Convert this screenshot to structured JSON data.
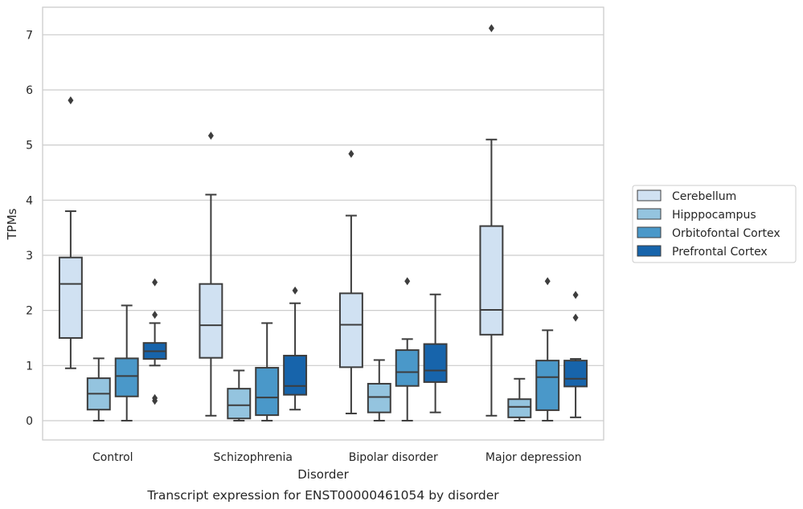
{
  "chart_data": {
    "type": "boxplot",
    "title": "",
    "caption": "Transcript expression for ENST00000461054 by disorder",
    "xlabel": "Disorder",
    "ylabel": "TPMs",
    "ylim": [
      -0.35,
      7.5
    ],
    "yticks": [
      0,
      1,
      2,
      3,
      4,
      5,
      6,
      7
    ],
    "grid": "horizontal",
    "legend_position": "right",
    "categories": [
      "Control",
      "Schizophrenia",
      "Bipolar disorder",
      "Major depression"
    ],
    "series": [
      {
        "name": "Cerebellum",
        "color": "#d0e1f2",
        "boxes": [
          {
            "q1": 1.5,
            "median": 2.48,
            "q3": 2.96,
            "whislo": 0.95,
            "whishi": 3.8,
            "fliers": [
              5.81
            ]
          },
          {
            "q1": 1.14,
            "median": 1.73,
            "q3": 2.48,
            "whislo": 0.09,
            "whishi": 4.1,
            "fliers": [
              5.17
            ]
          },
          {
            "q1": 0.97,
            "median": 1.74,
            "q3": 2.31,
            "whislo": 0.13,
            "whishi": 3.72,
            "fliers": [
              4.84
            ]
          },
          {
            "q1": 1.56,
            "median": 2.01,
            "q3": 3.53,
            "whislo": 0.09,
            "whishi": 5.1,
            "fliers": [
              7.12
            ]
          }
        ]
      },
      {
        "name": "Hipppocampus",
        "color": "#94c4df",
        "boxes": [
          {
            "q1": 0.2,
            "median": 0.49,
            "q3": 0.77,
            "whislo": 0.0,
            "whishi": 1.13,
            "fliers": []
          },
          {
            "q1": 0.04,
            "median": 0.28,
            "q3": 0.58,
            "whislo": 0.0,
            "whishi": 0.91,
            "fliers": []
          },
          {
            "q1": 0.15,
            "median": 0.43,
            "q3": 0.67,
            "whislo": 0.0,
            "whishi": 1.1,
            "fliers": []
          },
          {
            "q1": 0.06,
            "median": 0.25,
            "q3": 0.39,
            "whislo": 0.0,
            "whishi": 0.76,
            "fliers": []
          }
        ]
      },
      {
        "name": "Orbitofontal Cortex",
        "color": "#4a98c9",
        "boxes": [
          {
            "q1": 0.44,
            "median": 0.81,
            "q3": 1.13,
            "whislo": 0.0,
            "whishi": 2.09,
            "fliers": []
          },
          {
            "q1": 0.1,
            "median": 0.42,
            "q3": 0.96,
            "whislo": 0.0,
            "whishi": 1.77,
            "fliers": []
          },
          {
            "q1": 0.63,
            "median": 0.88,
            "q3": 1.28,
            "whislo": 0.0,
            "whishi": 1.48,
            "fliers": [
              2.53
            ]
          },
          {
            "q1": 0.19,
            "median": 0.79,
            "q3": 1.09,
            "whislo": 0.0,
            "whishi": 1.64,
            "fliers": [
              2.53
            ]
          }
        ]
      },
      {
        "name": "Prefrontal Cortex",
        "color": "#1764ab",
        "boxes": [
          {
            "q1": 1.12,
            "median": 1.26,
            "q3": 1.41,
            "whislo": 1.0,
            "whishi": 1.77,
            "fliers": [
              2.51,
              1.92,
              0.41,
              0.36
            ]
          },
          {
            "q1": 0.47,
            "median": 0.63,
            "q3": 1.18,
            "whislo": 0.2,
            "whishi": 2.13,
            "fliers": [
              2.36
            ]
          },
          {
            "q1": 0.7,
            "median": 0.91,
            "q3": 1.39,
            "whislo": 0.15,
            "whishi": 2.29,
            "fliers": []
          },
          {
            "q1": 0.62,
            "median": 0.76,
            "q3": 1.09,
            "whislo": 0.06,
            "whishi": 1.12,
            "fliers": [
              2.28,
              1.87
            ]
          }
        ]
      }
    ]
  }
}
